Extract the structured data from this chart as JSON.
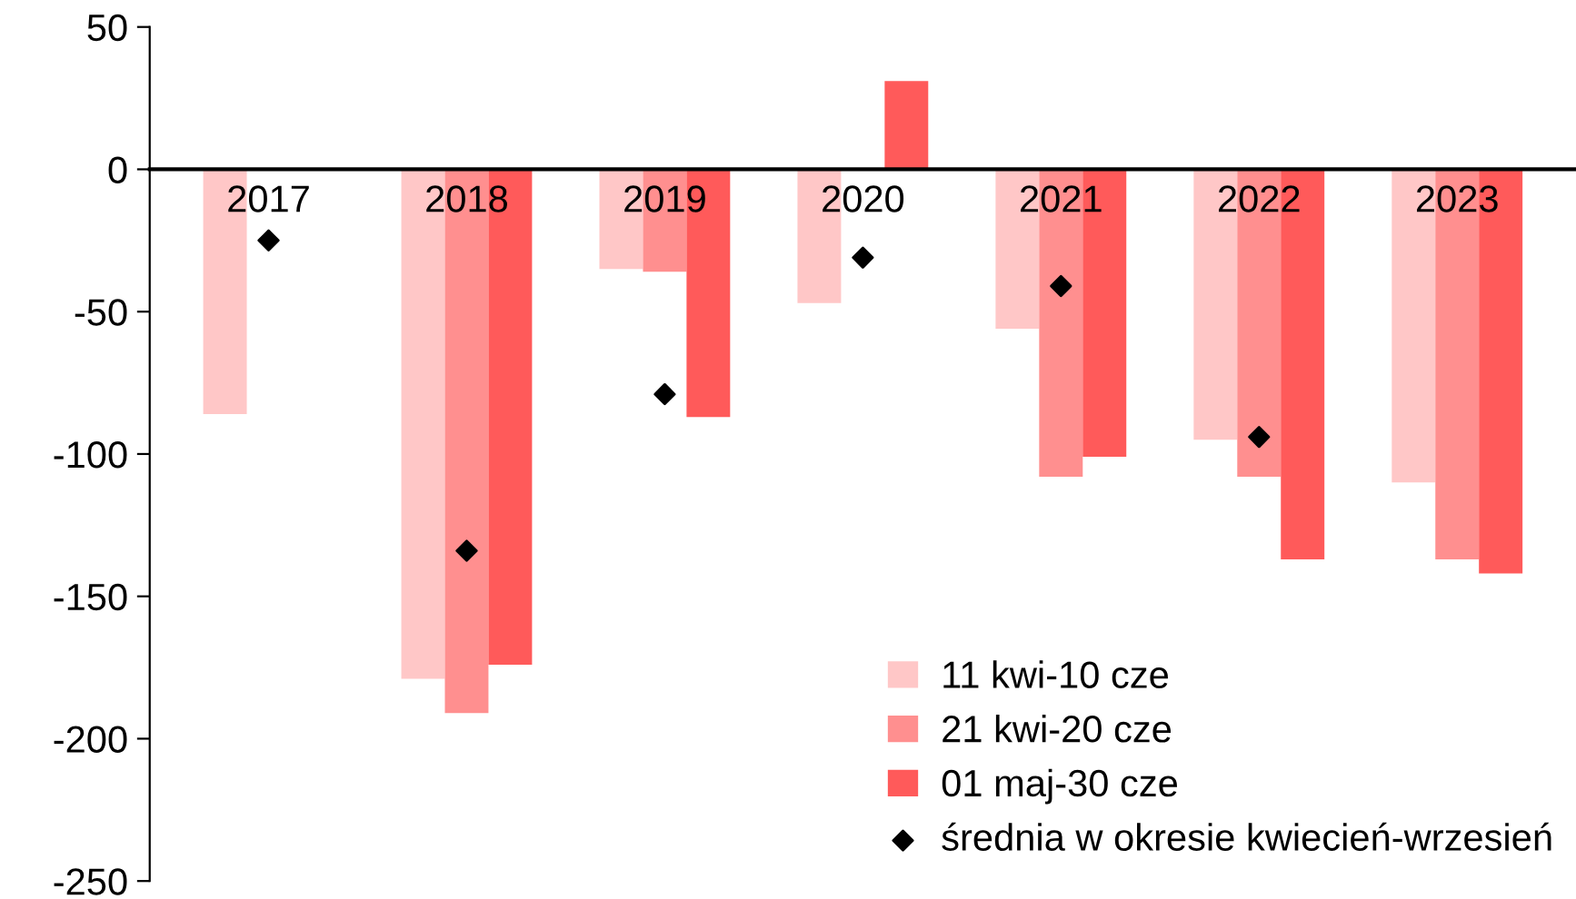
{
  "chart_data": {
    "type": "bar",
    "categories": [
      "2017",
      "2018",
      "2019",
      "2020",
      "2021",
      "2022",
      "2023"
    ],
    "series": [
      {
        "name": "11 kwi-10 cze",
        "color": "#ffc7c7",
        "values": [
          -86,
          -179,
          -35,
          -47,
          -56,
          -95,
          -110
        ]
      },
      {
        "name": "21 kwi-20 cze",
        "color": "#ff8f8f",
        "values": [
          null,
          -191,
          -36,
          null,
          -108,
          -108,
          -137
        ]
      },
      {
        "name": "01 maj-30 cze",
        "color": "#ff5a5a",
        "values": [
          null,
          -174,
          -87,
          31,
          -101,
          -137,
          -142
        ]
      },
      {
        "name": "średnia w okresie kwiecień-wrzesień",
        "type": "scatter",
        "marker": "diamond",
        "color": "#000000",
        "values": [
          -25,
          -134,
          -79,
          -31,
          -41,
          -94,
          null
        ]
      }
    ],
    "ylim": [
      -250,
      50
    ],
    "yticks": [
      -250,
      -200,
      -150,
      -100,
      -50,
      0,
      50
    ],
    "grid": false,
    "legend": "bottom right"
  }
}
